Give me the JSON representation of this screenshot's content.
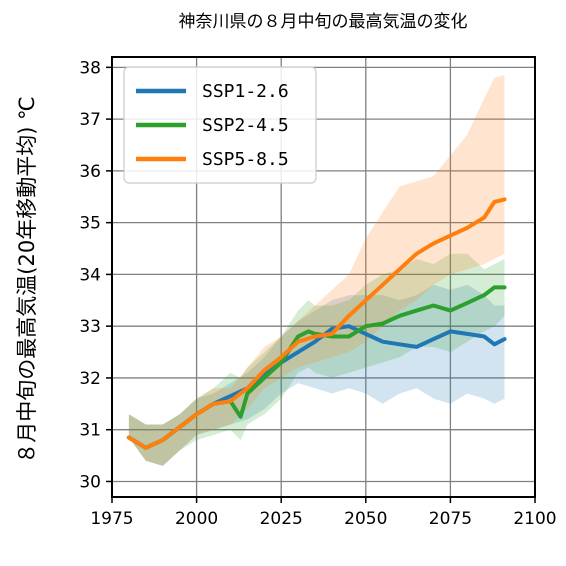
{
  "chart_data": {
    "type": "line",
    "title": "神奈川県の８月中旬の最高気温の変化",
    "xlabel": "",
    "ylabel": "８月中旬の最高気温(20年移動平均) ℃",
    "xlim": [
      1975,
      2100
    ],
    "ylim": [
      29.7,
      38.2
    ],
    "xticks": [
      1975,
      2000,
      2025,
      2050,
      2075,
      2100
    ],
    "yticks": [
      30,
      31,
      32,
      33,
      34,
      35,
      36,
      37,
      38
    ],
    "grid": true,
    "legend_position": "top-left",
    "series": [
      {
        "name": "SSP1-2.6",
        "color": "#1f77b4",
        "x": [
          1980,
          1985,
          1990,
          1995,
          2000,
          2005,
          2010,
          2015,
          2020,
          2025,
          2030,
          2035,
          2040,
          2045,
          2050,
          2055,
          2060,
          2065,
          2070,
          2075,
          2080,
          2085,
          2088,
          2091
        ],
        "y": [
          30.85,
          30.65,
          30.8,
          31.05,
          31.3,
          31.5,
          31.65,
          31.8,
          32.05,
          32.3,
          32.5,
          32.7,
          32.95,
          33.0,
          32.85,
          32.7,
          32.65,
          32.6,
          32.75,
          32.9,
          32.85,
          32.8,
          32.65,
          32.75
        ],
        "lower": [
          30.85,
          30.4,
          30.3,
          30.6,
          30.9,
          31.0,
          31.1,
          31.2,
          31.4,
          31.7,
          31.9,
          31.8,
          31.7,
          31.8,
          31.7,
          31.5,
          31.7,
          31.8,
          31.6,
          31.5,
          31.7,
          31.6,
          31.5,
          31.6
        ],
        "upper": [
          31.3,
          31.1,
          31.1,
          31.3,
          31.6,
          31.7,
          31.9,
          32.1,
          32.4,
          32.8,
          33.1,
          33.3,
          33.5,
          33.6,
          33.6,
          33.6,
          33.5,
          33.6,
          33.8,
          33.7,
          33.8,
          33.6,
          33.4,
          33.4
        ]
      },
      {
        "name": "SSP2-4.5",
        "color": "#2ca02c",
        "x": [
          1980,
          1985,
          1990,
          1995,
          2000,
          2005,
          2010,
          2013,
          2015,
          2020,
          2025,
          2030,
          2033,
          2035,
          2040,
          2045,
          2050,
          2055,
          2060,
          2065,
          2070,
          2075,
          2080,
          2085,
          2088,
          2091
        ],
        "y": [
          30.85,
          30.65,
          30.8,
          31.05,
          31.3,
          31.5,
          31.55,
          31.25,
          31.7,
          32.0,
          32.3,
          32.8,
          32.9,
          32.85,
          32.8,
          32.8,
          33.0,
          33.05,
          33.2,
          33.3,
          33.4,
          33.3,
          33.45,
          33.6,
          33.75,
          33.75
        ],
        "lower": [
          30.85,
          30.4,
          30.3,
          30.6,
          30.8,
          30.9,
          31.0,
          30.8,
          31.1,
          31.3,
          31.6,
          32.1,
          32.2,
          32.1,
          32.0,
          32.1,
          32.2,
          32.3,
          32.4,
          32.6,
          32.6,
          32.5,
          32.7,
          32.9,
          33.0,
          33.2
        ],
        "upper": [
          31.3,
          31.1,
          31.1,
          31.3,
          31.6,
          31.8,
          32.1,
          32.0,
          32.2,
          32.5,
          32.8,
          33.3,
          33.5,
          33.4,
          33.4,
          33.5,
          33.8,
          34.0,
          34.1,
          34.3,
          34.2,
          34.4,
          34.4,
          34.1,
          34.2,
          34.3
        ]
      },
      {
        "name": "SSP5-8.5",
        "color": "#ff7f0e",
        "x": [
          1980,
          1985,
          1990,
          1995,
          2000,
          2005,
          2010,
          2015,
          2020,
          2025,
          2030,
          2035,
          2040,
          2045,
          2050,
          2055,
          2060,
          2065,
          2070,
          2075,
          2080,
          2085,
          2088,
          2091
        ],
        "y": [
          30.85,
          30.65,
          30.8,
          31.05,
          31.3,
          31.5,
          31.55,
          31.8,
          32.15,
          32.4,
          32.7,
          32.8,
          32.85,
          33.2,
          33.5,
          33.8,
          34.1,
          34.4,
          34.6,
          34.75,
          34.9,
          35.1,
          35.4,
          35.45
        ],
        "lower": [
          30.85,
          30.4,
          30.3,
          30.6,
          30.9,
          31.0,
          31.1,
          31.4,
          31.8,
          32.0,
          32.2,
          32.3,
          32.4,
          32.5,
          32.7,
          33.0,
          33.3,
          33.5,
          33.8,
          34.0,
          34.1,
          34.2,
          34.3,
          34.4
        ],
        "upper": [
          31.3,
          31.1,
          31.1,
          31.3,
          31.6,
          31.8,
          31.8,
          32.2,
          32.6,
          32.8,
          33.1,
          33.4,
          33.7,
          34.0,
          34.7,
          35.2,
          35.7,
          35.8,
          35.9,
          36.3,
          36.7,
          37.4,
          37.8,
          37.85
        ]
      }
    ]
  }
}
